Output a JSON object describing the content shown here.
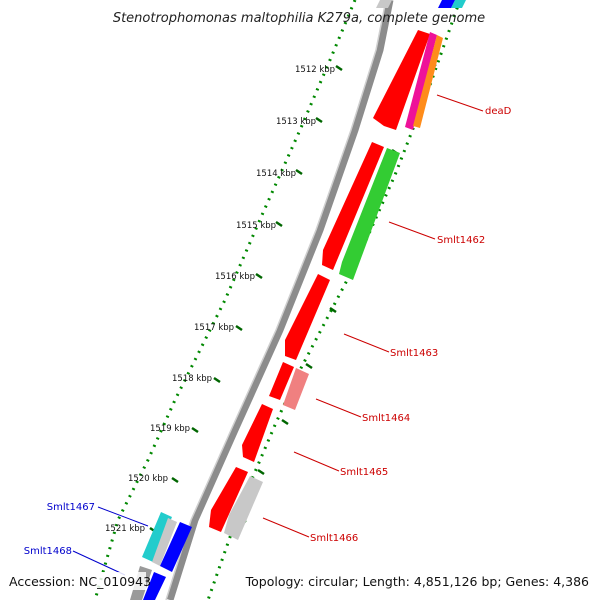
{
  "map": {
    "title": "Stenotrophomonas maltophilia K279a, complete genome",
    "accession": "Accession: NC_010943",
    "summary": "Topology: circular; Length: 4,851,126 bp; Genes: 4,386",
    "ticks": [
      "1512 kbp",
      "1513 kbp",
      "1514 kbp",
      "1515 kbp",
      "1516 kbp",
      "1517 kbp",
      "1518 kbp",
      "1519 kbp",
      "1520 kbp",
      "1521 kbp"
    ],
    "labels_forward": [
      "deaD",
      "Smlt1462",
      "Smlt1463",
      "Smlt1464",
      "Smlt1465",
      "Smlt1466"
    ],
    "labels_reverse": [
      "Smlt1467",
      "Smlt1468"
    ],
    "colors": {
      "forward_label": "#cc0000",
      "reverse_label": "#0000cc",
      "gene_red": "#ff0000",
      "gene_green": "#33cc33",
      "gene_blue": "#0000ff",
      "gene_cyan": "#22cccc",
      "gene_gray": "#c8c8c8",
      "gene_pink": "#f08080",
      "gene_orange": "#ff8c1a",
      "gene_magenta": "#ee1199",
      "backbone": "#8c8c8c",
      "dotted_track": "#008800"
    }
  }
}
